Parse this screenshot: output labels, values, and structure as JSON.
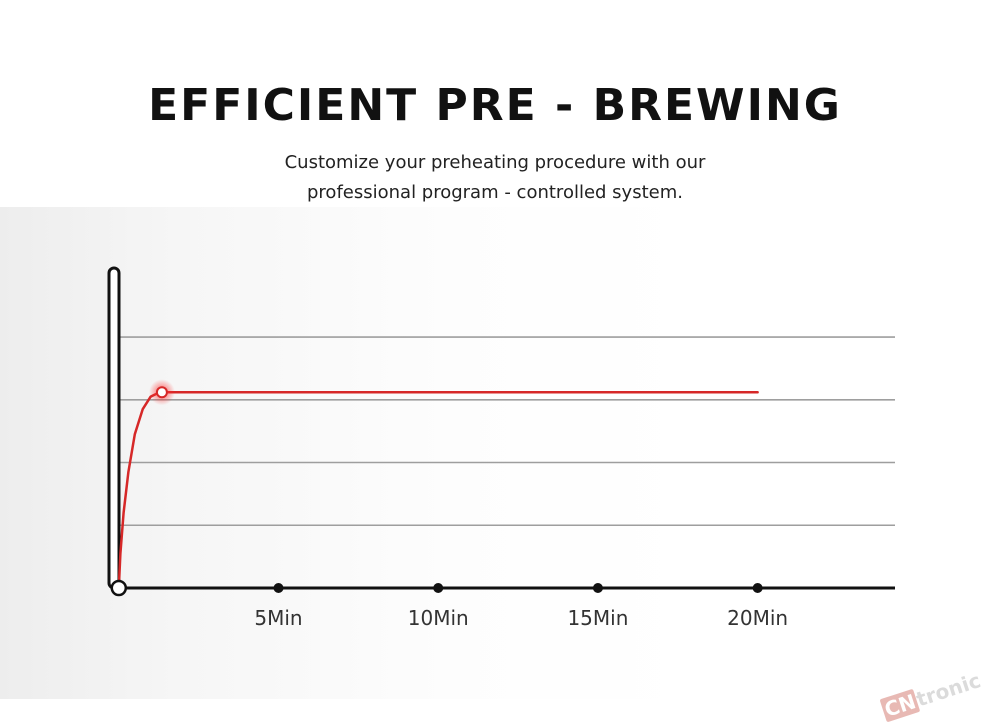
{
  "header": {
    "title": "EFFICIENT PRE - BREWING",
    "subtitle_line1": "Customize your preheating procedure with our",
    "subtitle_line2": "professional program - controlled system."
  },
  "watermark": {
    "part1": "CN",
    "part2": "tronic"
  },
  "colors": {
    "curve": "#d62828",
    "axis": "#111111",
    "grid": "#9e9e9e"
  },
  "chart_data": {
    "type": "line",
    "title": "",
    "xlabel": "",
    "ylabel": "",
    "x_ticks": [
      5,
      10,
      15,
      20
    ],
    "x_tick_labels": [
      "5Min",
      "10Min",
      "15Min",
      "20Min"
    ],
    "xlim": [
      -0.15,
      24.3
    ],
    "ylim": [
      0,
      5.1
    ],
    "y_gridlines": [
      1,
      2,
      3,
      4
    ],
    "grid": true,
    "series": [
      {
        "x": [
          0,
          0.05,
          0.15,
          0.3,
          0.5,
          0.75,
          1.0,
          1.2,
          1.35,
          2,
          4,
          6,
          8,
          10,
          12,
          14,
          16,
          18,
          20
        ],
        "y": [
          0,
          0.55,
          1.2,
          1.85,
          2.45,
          2.85,
          3.05,
          3.1,
          3.12,
          3.12,
          3.12,
          3.12,
          3.12,
          3.12,
          3.12,
          3.12,
          3.12,
          3.12,
          3.12
        ]
      }
    ],
    "highlight_point": {
      "x": 1.35,
      "y": 3.12
    },
    "legend": "none"
  }
}
